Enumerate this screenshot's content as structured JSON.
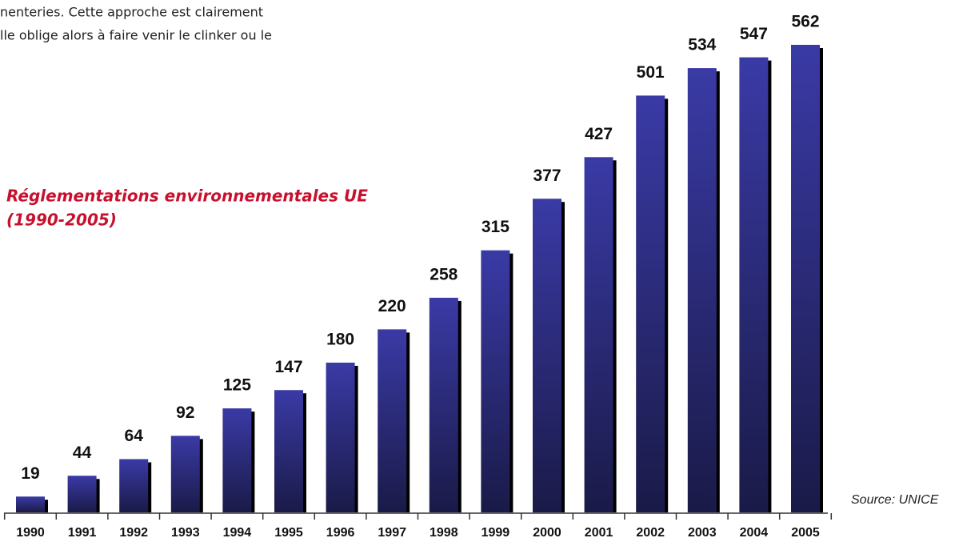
{
  "text_lines": [
    "nenteries. Cette approche est clairement",
    "lle oblige alors à faire venir le clinker ou le"
  ],
  "chart_data": {
    "type": "bar",
    "title": [
      "Réglementations environnementales UE",
      "(1990-2005)"
    ],
    "source": "Source: UNICE",
    "categories": [
      "1990",
      "1991",
      "1992",
      "1993",
      "1994",
      "1995",
      "1996",
      "1997",
      "1998",
      "1999",
      "2000",
      "2001",
      "2002",
      "2003",
      "2004",
      "2005"
    ],
    "values": [
      19,
      44,
      64,
      92,
      125,
      147,
      180,
      220,
      258,
      315,
      377,
      427,
      501,
      534,
      547,
      562
    ],
    "color": "#3a3aa6",
    "title_color": "#c8102e"
  }
}
